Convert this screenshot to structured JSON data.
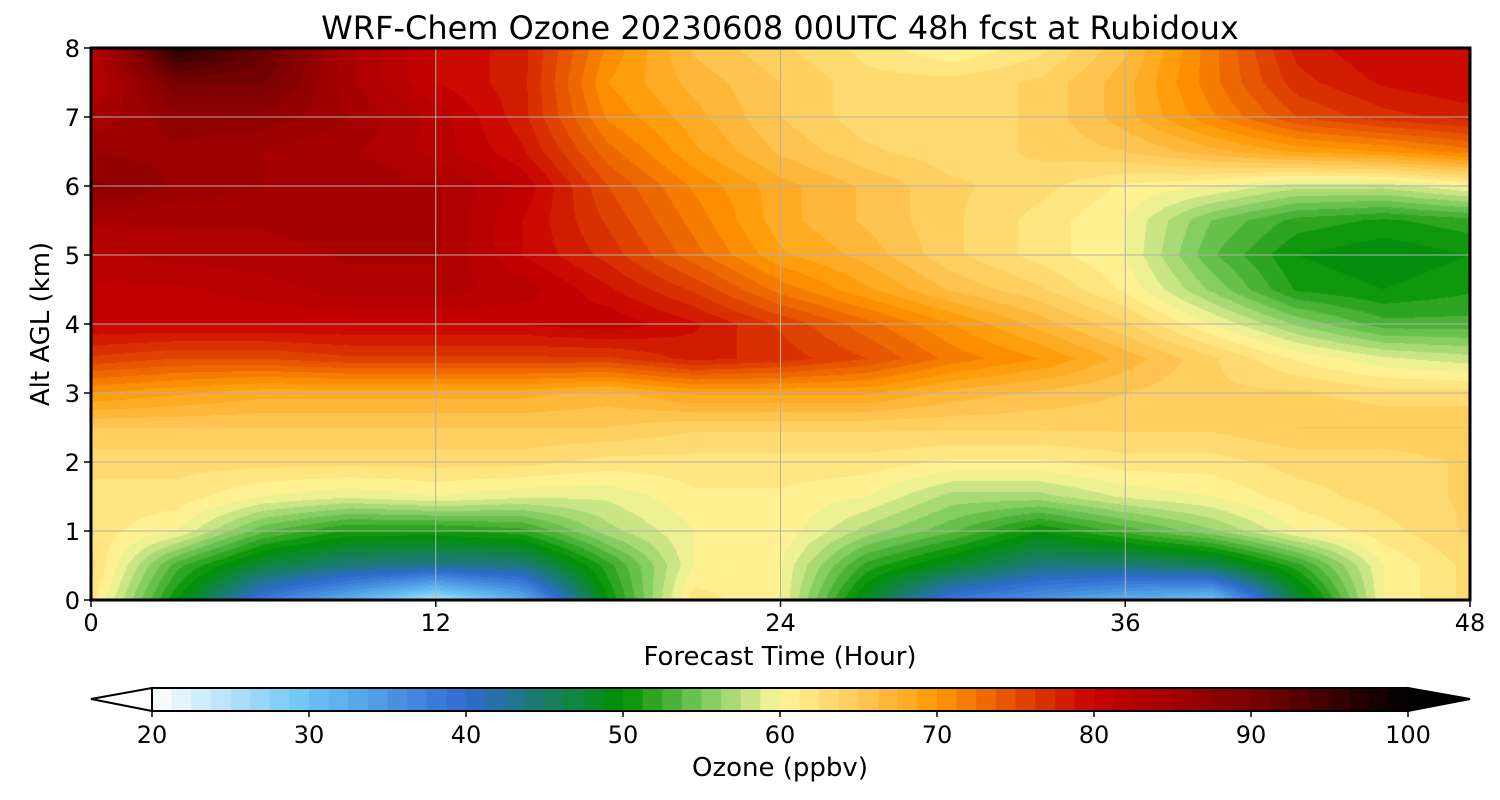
{
  "chart_data": {
    "type": "heatmap",
    "title": "WRF-Chem Ozone  20230608 00UTC 48h fcst at Rubidoux",
    "xlabel": "Forecast Time (Hour)",
    "ylabel": "Alt AGL (km)",
    "xlim": [
      0,
      48
    ],
    "ylim": [
      0,
      8
    ],
    "x_ticks": [
      0,
      12,
      24,
      36,
      48
    ],
    "y_ticks": [
      0,
      1,
      2,
      3,
      4,
      5,
      6,
      7,
      8
    ],
    "grid": true,
    "x_hours": [
      0,
      3,
      6,
      9,
      12,
      15,
      18,
      21,
      24,
      27,
      30,
      33,
      36,
      39,
      42,
      45,
      48
    ],
    "y_km": [
      0,
      0.5,
      1,
      1.5,
      2,
      2.5,
      3,
      3.5,
      4,
      4.5,
      5,
      5.5,
      6,
      6.5,
      7,
      7.5,
      8
    ],
    "z_ppbv": [
      [
        62,
        50,
        38,
        32,
        25,
        32,
        50,
        62,
        60,
        48,
        38,
        35,
        32,
        30,
        47,
        60,
        63
      ],
      [
        63,
        53,
        47,
        44,
        43,
        44,
        52,
        60,
        60,
        52,
        48,
        44,
        44,
        46,
        52,
        60,
        63
      ],
      [
        62,
        60,
        54,
        51,
        51,
        52,
        57,
        60,
        61,
        57,
        54,
        50,
        53,
        56,
        60,
        62,
        64
      ],
      [
        62,
        62,
        60,
        59,
        60,
        59,
        59,
        61,
        61,
        60,
        57,
        57,
        59,
        60,
        62,
        63,
        64
      ],
      [
        63,
        63,
        63,
        63,
        63,
        63,
        62,
        62,
        62,
        62,
        61,
        61,
        62,
        62,
        63,
        63,
        64
      ],
      [
        65,
        65,
        65,
        65,
        65,
        65,
        65,
        64,
        64,
        64,
        64,
        64,
        64,
        64,
        65,
        65,
        65
      ],
      [
        70,
        69,
        68,
        68,
        68,
        68,
        67,
        69,
        69,
        69,
        67,
        66,
        65,
        64,
        64,
        63,
        63
      ],
      [
        76,
        75,
        75,
        76,
        76,
        76,
        76,
        78,
        77,
        75,
        72,
        70,
        67,
        64,
        61,
        59,
        58
      ],
      [
        80,
        80,
        80,
        80,
        80,
        80,
        81,
        79,
        76,
        73,
        70,
        67,
        64,
        60,
        56,
        53,
        53
      ],
      [
        81,
        81,
        82,
        83,
        83,
        82,
        79,
        76,
        72,
        69,
        66,
        64,
        61,
        56,
        51,
        50,
        51
      ],
      [
        82,
        83,
        83,
        84,
        84,
        80,
        77,
        73,
        69,
        67,
        64,
        62,
        60,
        54,
        50,
        49,
        50
      ],
      [
        84,
        84,
        84,
        85,
        84,
        80,
        76,
        72,
        68,
        66,
        64,
        62,
        60,
        55,
        52,
        51,
        52
      ],
      [
        88,
        86,
        85,
        85,
        84,
        81,
        75,
        71,
        68,
        66,
        64,
        63,
        61,
        60,
        58,
        58,
        60
      ],
      [
        86,
        86,
        85,
        84,
        82,
        79,
        73,
        69,
        66,
        64,
        63,
        64,
        65,
        67,
        69,
        70,
        72
      ],
      [
        84,
        87,
        87,
        85,
        82,
        78,
        71,
        68,
        65,
        63,
        63,
        64,
        67,
        71,
        75,
        77,
        78
      ],
      [
        82,
        90,
        90,
        84,
        80,
        78,
        70,
        67,
        65,
        63,
        63,
        64,
        67,
        72,
        77,
        79,
        80
      ],
      [
        82,
        97,
        92,
        84,
        80,
        78,
        71,
        66,
        64,
        62,
        60,
        62,
        66,
        72,
        78,
        80,
        80
      ]
    ],
    "colorbar": {
      "label": "Ozone  (ppbv)",
      "min": 20,
      "max": 100,
      "ticks": [
        20,
        30,
        40,
        50,
        60,
        70,
        80,
        90,
        100
      ],
      "extend": "both",
      "stops": [
        {
          "v": 20,
          "c": "#ffffff"
        },
        {
          "v": 30,
          "c": "#69c4f5"
        },
        {
          "v": 40,
          "c": "#2f6ad0"
        },
        {
          "v": 50,
          "c": "#009100"
        },
        {
          "v": 56,
          "c": "#8fd16a"
        },
        {
          "v": 60,
          "c": "#fff79a"
        },
        {
          "v": 66,
          "c": "#ffc04a"
        },
        {
          "v": 70,
          "c": "#ff9800"
        },
        {
          "v": 80,
          "c": "#c80000"
        },
        {
          "v": 90,
          "c": "#7a0000"
        },
        {
          "v": 100,
          "c": "#000000"
        }
      ]
    }
  }
}
